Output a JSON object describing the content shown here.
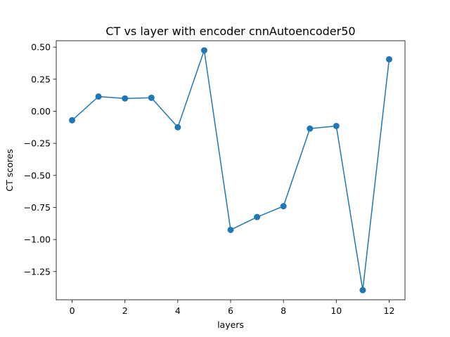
{
  "chart_data": {
    "type": "line",
    "title": "CT vs layer with encoder cnnAutoencoder50",
    "xlabel": "layers",
    "ylabel": "CT scores",
    "xlim": [
      -0.6,
      12.6
    ],
    "ylim": [
      -1.47,
      0.55
    ],
    "xticks": [
      0,
      2,
      4,
      6,
      8,
      10,
      12
    ],
    "xtick_labels": [
      "0",
      "2",
      "4",
      "6",
      "8",
      "10",
      "12"
    ],
    "yticks": [
      0.5,
      0.25,
      0.0,
      -0.25,
      -0.5,
      -0.75,
      -1.0,
      -1.25
    ],
    "ytick_labels": [
      "0.50",
      "0.25",
      "0.00",
      "−0.25",
      "−0.50",
      "−0.75",
      "−1.00",
      "−1.25"
    ],
    "grid": false,
    "series": [
      {
        "color": "#1f77b4",
        "marker": "circle",
        "x": [
          0,
          1,
          2,
          3,
          4,
          5,
          6,
          7,
          8,
          9,
          10,
          11,
          12
        ],
        "y": [
          -0.07,
          0.115,
          0.1,
          0.105,
          -0.125,
          0.475,
          -0.925,
          -0.825,
          -0.74,
          -0.135,
          -0.115,
          -1.395,
          0.405
        ]
      }
    ]
  }
}
